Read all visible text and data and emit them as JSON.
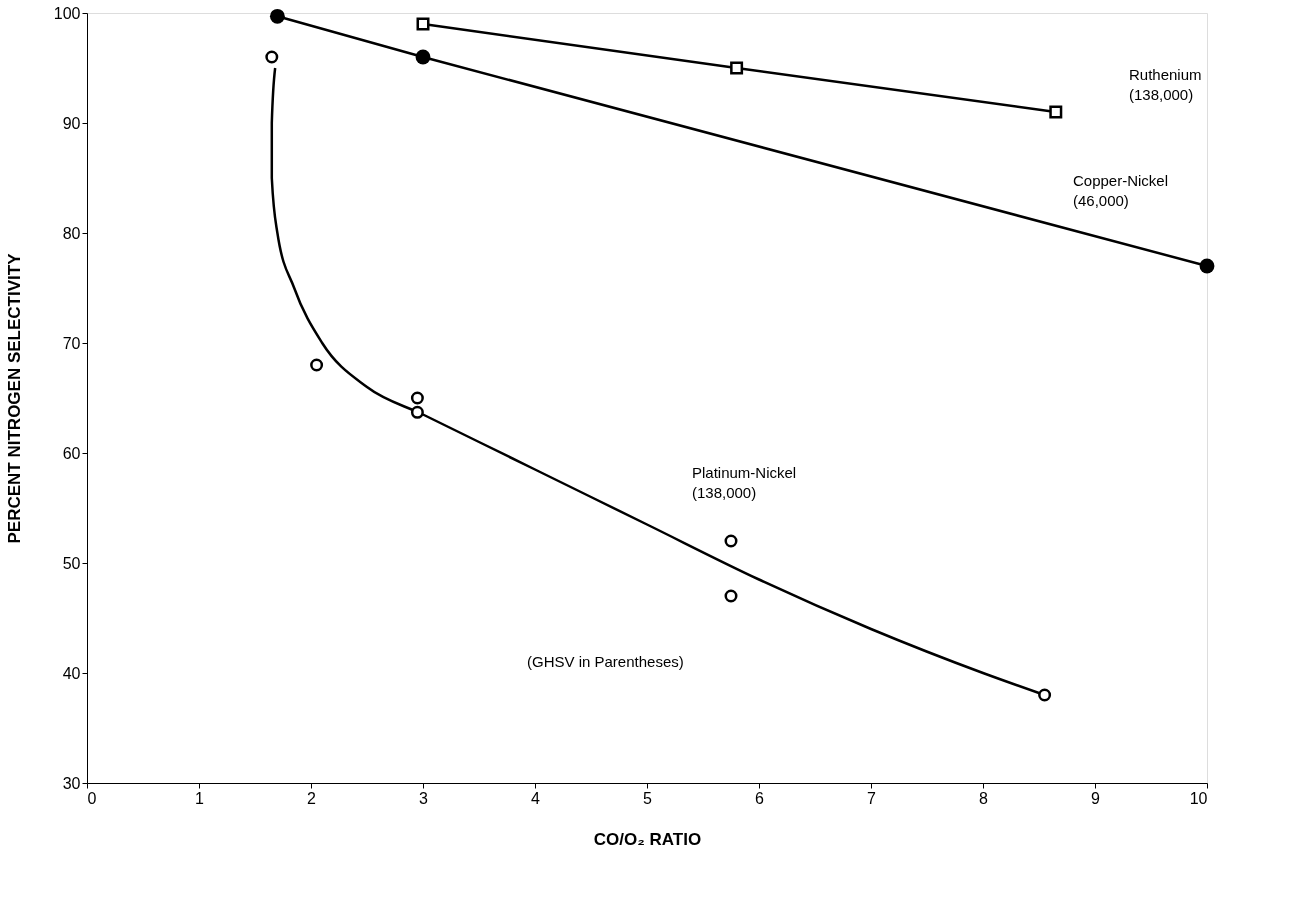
{
  "chart_data": {
    "type": "line",
    "xlabel": "CO/O₂ RATIO",
    "ylabel": "PERCENT NITROGEN SELECTIVITY",
    "xlim": [
      0,
      10
    ],
    "xticks": [
      0,
      1,
      2,
      3,
      4,
      5,
      6,
      7,
      8,
      9,
      10
    ],
    "ylim": [
      30,
      100
    ],
    "yticks": [
      30,
      40,
      50,
      60,
      70,
      80,
      90,
      100
    ],
    "grid": false,
    "series": [
      {
        "marker": "square",
        "color": "#000000",
        "x": [
          3.0,
          5.8,
          8.65
        ],
        "values": [
          99,
          95,
          91
        ]
      },
      {
        "marker": "circle",
        "color": "#000000",
        "x": [
          1.7,
          3.0,
          10.0
        ],
        "values": [
          99.7,
          96,
          77
        ]
      },
      {
        "marker": "none",
        "color": "#000000",
        "x": [
          1.68,
          1.65,
          1.65,
          1.7,
          1.85,
          2.1,
          2.5,
          3.0,
          4,
          5,
          6,
          7,
          8,
          8.55
        ],
        "values": [
          95,
          90,
          85,
          80,
          75,
          70,
          66,
          63.5,
          58.5,
          53.5,
          48.5,
          44,
          40,
          38
        ]
      },
      {
        "type": "scatter",
        "marker": "circle",
        "color": "#000000",
        "x": [
          1.65,
          2.05,
          2.95,
          2.95,
          5.75,
          5.75,
          8.55
        ],
        "values": [
          96,
          68,
          65,
          63.7,
          52,
          47,
          38
        ]
      }
    ],
    "annotations": [
      "Ruthenium\n(138,000)",
      "Copper-Nickel\n(46,000)",
      "Platinum-Nickel\n(138,000)",
      "(GHSV in Parentheses)"
    ]
  }
}
